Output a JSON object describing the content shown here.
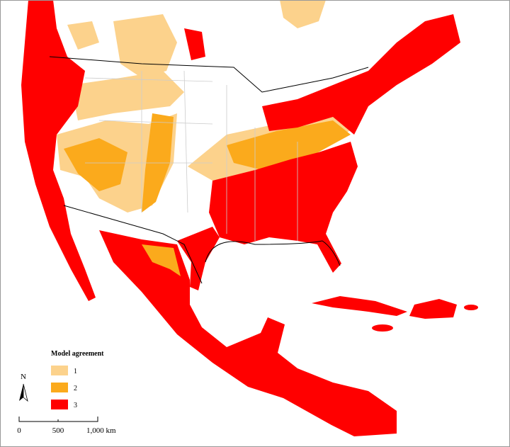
{
  "legend": {
    "title": "Model agreement",
    "items": [
      {
        "label": "1",
        "color": "#fcd28c"
      },
      {
        "label": "2",
        "color": "#fbaa1c"
      },
      {
        "label": "3",
        "color": "#ff0000"
      }
    ]
  },
  "north_arrow": "N",
  "scale_bar": {
    "labels": [
      "0",
      "500",
      "1,000 km"
    ]
  }
}
